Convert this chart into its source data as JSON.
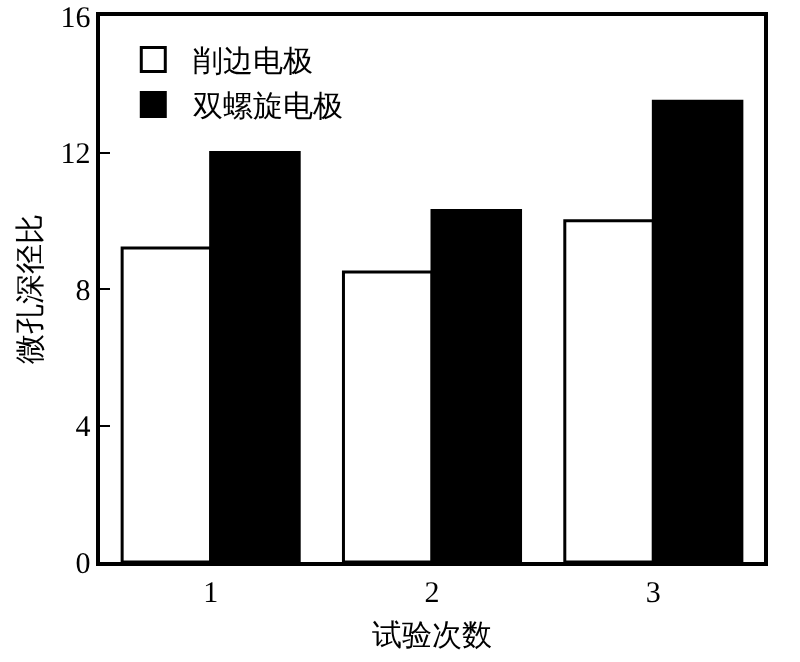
{
  "chart_data": {
    "type": "bar",
    "xlabel": "试验次数",
    "ylabel": "微孔深径比",
    "categories": [
      "1",
      "2",
      "3"
    ],
    "series": [
      {
        "name": "削边电极",
        "color": "#ffffff",
        "values": [
          9.2,
          8.5,
          10.0
        ]
      },
      {
        "name": "双螺旋电极",
        "color": "#000000",
        "values": [
          12.0,
          10.3,
          13.5
        ]
      }
    ],
    "ylim": [
      0,
      16
    ],
    "yticks": [
      0,
      4,
      8,
      12,
      16
    ],
    "grid": false,
    "legend": "top left"
  }
}
